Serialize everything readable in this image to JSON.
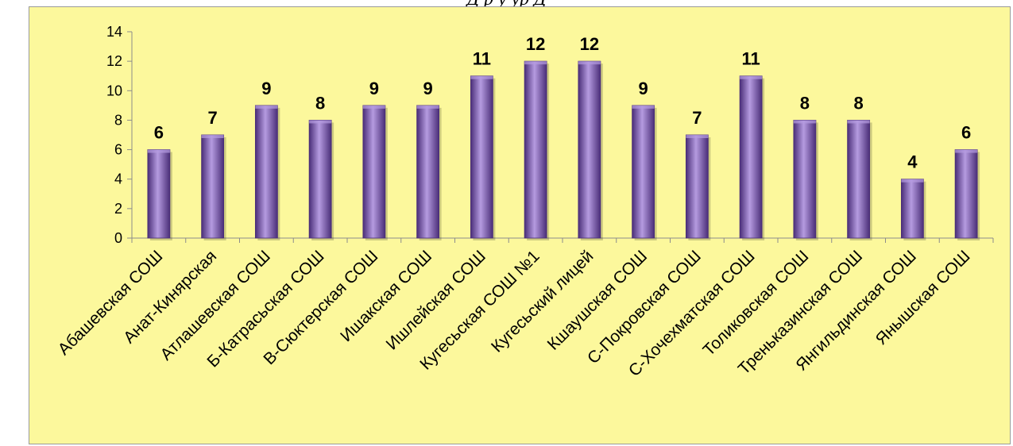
{
  "caption": "Д  р                                  у                              ур        Д",
  "chart_data": {
    "type": "bar",
    "title": "",
    "xlabel": "",
    "ylabel": "",
    "ylim": [
      0,
      14
    ],
    "yticks": [
      "0",
      "2",
      "4",
      "6",
      "8",
      "10",
      "12",
      "14"
    ],
    "grid": false,
    "legend": "none",
    "categories": [
      "Абашевская СОШ",
      "Анат-Кинярская",
      "Атлашевская СОШ",
      "Б-Катрасьская СОШ",
      "В-Сюктерская СОШ",
      "Ишакская СОШ",
      "Ишлейская СОШ",
      "Кугесьская СОШ №1",
      "Кугесьский лицей",
      "Кшаушская СОШ",
      "С-Покровская СОШ",
      "С-Хочехматская СОШ",
      "Толиковская СОШ",
      "Треньказинская СОШ",
      "Янгильдинская СОШ",
      "Янышская СОШ"
    ],
    "values": [
      6,
      7,
      9,
      8,
      9,
      9,
      11,
      12,
      12,
      9,
      7,
      11,
      8,
      8,
      4,
      6
    ],
    "data_labels": [
      "6",
      "7",
      "9",
      "8",
      "9",
      "9",
      "11",
      "12",
      "12",
      "9",
      "7",
      "11",
      "8",
      "8",
      "4",
      "6"
    ],
    "bar_color": "#7b5bb0",
    "bar_dark": "#4a2e78",
    "bar_light": "#b59be0",
    "background_color": "#fcf89c"
  }
}
